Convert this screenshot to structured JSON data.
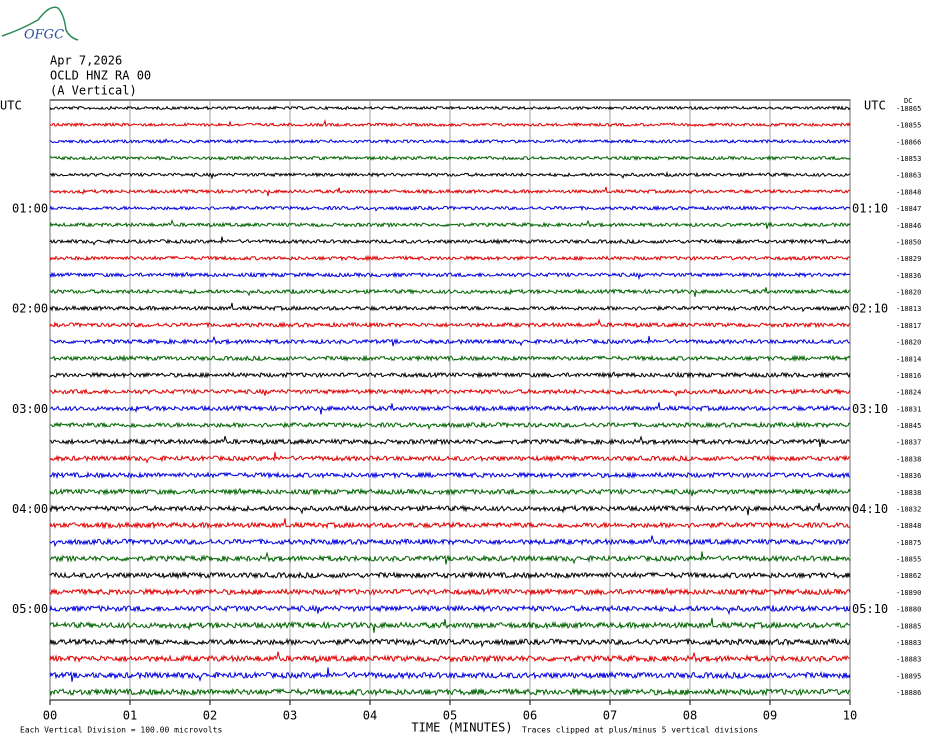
{
  "header": {
    "logo": "OFGC",
    "date": "Apr 7,2026",
    "station": "OCLD HNZ RA 00",
    "component": "(A Vertical)"
  },
  "chart_data": {
    "type": "helicorder",
    "left_label": "UTC",
    "right_label": "UTC",
    "dc_label": "DC",
    "x_label": "TIME (MINUTES)",
    "xlim": [
      0,
      10
    ],
    "xticks": [
      {
        "value": 0,
        "label": "00"
      },
      {
        "value": 1,
        "label": "01"
      },
      {
        "value": 2,
        "label": "02"
      },
      {
        "value": 3,
        "label": "03"
      },
      {
        "value": 4,
        "label": "04"
      },
      {
        "value": 5,
        "label": "05"
      },
      {
        "value": 6,
        "label": "06"
      },
      {
        "value": 7,
        "label": "07"
      },
      {
        "value": 8,
        "label": "08"
      },
      {
        "value": 9,
        "label": "09"
      },
      10
    ],
    "grid": true,
    "trace_colors": [
      "#000000",
      "#e00000",
      "#0000e0",
      "#006400"
    ],
    "trace_offsets": [
      "-18865",
      "-18855",
      "-18866",
      "-18853",
      "-18863",
      "-18848",
      "-18847",
      "-18846",
      "-18850",
      "-18829",
      "-18836",
      "-18820",
      "-18813",
      "-18817",
      "-18820",
      "-18814",
      "-18816",
      "-18824",
      "-18831",
      "-18845",
      "-18837",
      "-18838",
      "-18836",
      "-18838",
      "-18832",
      "-18848",
      "-18875",
      "-18855",
      "-18862",
      "-18890",
      "-18880",
      "-18885",
      "-18883",
      "-18883",
      "-18895",
      "-18886"
    ],
    "row_labels_left": [
      null,
      null,
      null,
      null,
      null,
      null,
      "01:00",
      null,
      null,
      null,
      null,
      null,
      "02:00",
      null,
      null,
      null,
      null,
      null,
      "03:00",
      null,
      null,
      null,
      null,
      null,
      "04:00",
      null,
      null,
      null,
      null,
      null,
      "05:00",
      null,
      null,
      null,
      null,
      null
    ],
    "row_labels_right": [
      null,
      null,
      null,
      null,
      null,
      null,
      "01:10",
      null,
      null,
      null,
      null,
      null,
      "02:10",
      null,
      null,
      null,
      null,
      null,
      "03:10",
      null,
      null,
      null,
      null,
      null,
      "04:10",
      null,
      null,
      null,
      null,
      null,
      "05:10",
      null,
      null,
      null,
      null,
      null
    ],
    "scale_note": "Each Vertical Division =  100.00 microvolts",
    "clip_note": "Traces clipped at plus/minus 5 vertical divisions"
  }
}
